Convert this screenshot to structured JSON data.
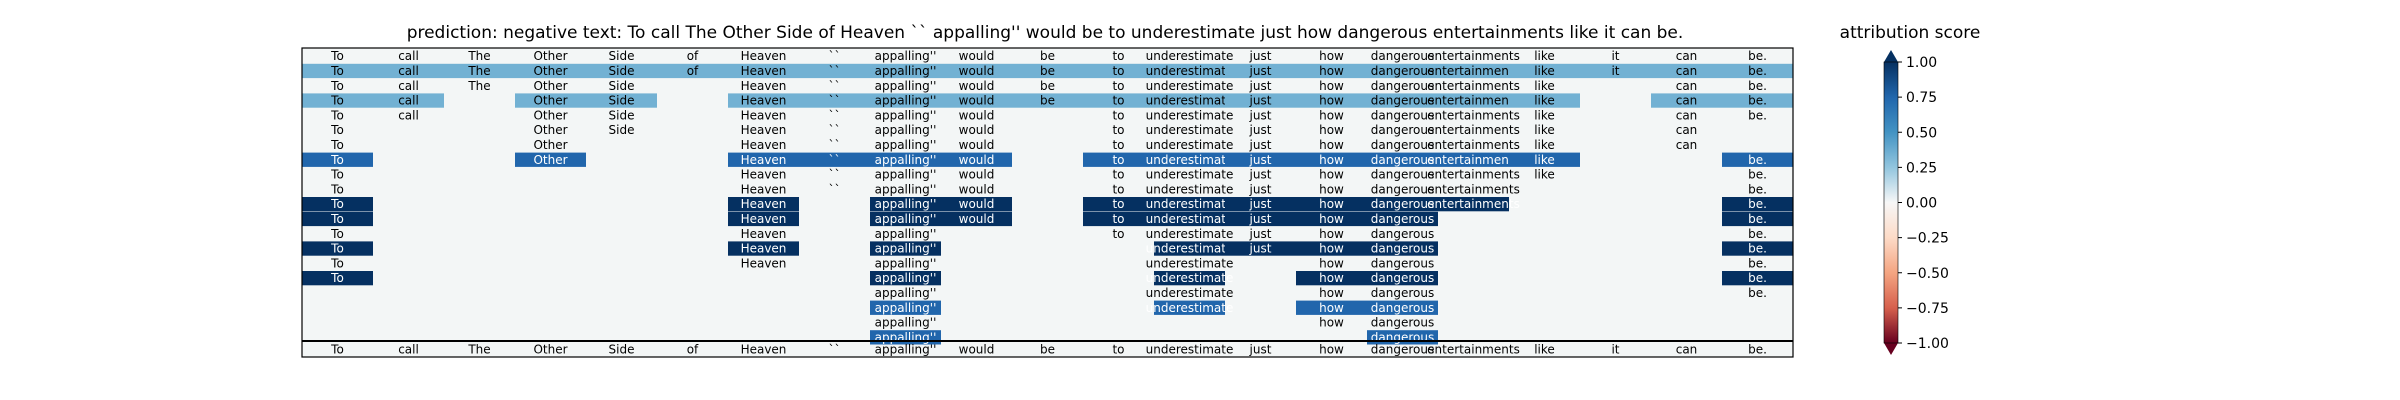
{
  "chart_data": {
    "type": "heatmap",
    "title_left": "prediction:  negative     text:  To call The Other Side of Heaven `` appalling'' would be to underestimate just how dangerous entertainments like it can be.",
    "title_right": "attribution score",
    "tokens": [
      "To",
      "call",
      "The",
      "Other",
      "Side",
      "of",
      "Heaven",
      "``",
      "appalling''",
      "would",
      "be",
      "to",
      "underestimate",
      "just",
      "how",
      "dangerous",
      "entertainments",
      "like",
      "it",
      "can",
      "be."
    ],
    "rows": [
      {
        "present": [
          0,
          1,
          2,
          3,
          4,
          5,
          6,
          7,
          8,
          9,
          10,
          11,
          12,
          13,
          14,
          15,
          16,
          17,
          18,
          19,
          20
        ],
        "scores": [
          0.0,
          0.0,
          0.0,
          0.0,
          0.0,
          0.0,
          0.0,
          0.0,
          0.0,
          0.0,
          0.0,
          0.0,
          0.0,
          0.0,
          0.0,
          0.0,
          0.0,
          0.0,
          0.0,
          0.0,
          0.0
        ]
      },
      {
        "present": [
          0,
          1,
          2,
          3,
          4,
          5,
          6,
          7,
          8,
          9,
          10,
          11,
          12,
          13,
          14,
          15,
          16,
          17,
          18,
          19,
          20
        ],
        "scores": [
          0.35,
          0.35,
          0.35,
          0.35,
          0.35,
          0.35,
          0.35,
          0.35,
          0.35,
          0.35,
          0.35,
          0.35,
          0.35,
          0.35,
          0.35,
          0.35,
          0.35,
          0.35,
          0.35,
          0.35,
          0.35
        ]
      },
      {
        "present": [
          0,
          1,
          2,
          3,
          4,
          6,
          7,
          8,
          9,
          10,
          11,
          12,
          13,
          14,
          15,
          16,
          17,
          19,
          20
        ],
        "scores": [
          0.0,
          0.0,
          0.0,
          0.0,
          0.0,
          0.0,
          0.0,
          0.0,
          0.0,
          0.0,
          0.0,
          0.0,
          0.0,
          0.0,
          0.0,
          0.0,
          0.0,
          0.0,
          0.0
        ]
      },
      {
        "present": [
          0,
          1,
          3,
          4,
          6,
          7,
          8,
          9,
          10,
          11,
          12,
          13,
          14,
          15,
          16,
          17,
          19,
          20
        ],
        "scores": [
          0.35,
          0.35,
          0.35,
          0.35,
          0.35,
          0.35,
          0.35,
          0.35,
          0.35,
          0.35,
          0.35,
          0.35,
          0.35,
          0.35,
          0.35,
          0.35,
          0.35,
          0.35
        ]
      },
      {
        "present": [
          0,
          1,
          3,
          4,
          6,
          7,
          8,
          9,
          11,
          12,
          13,
          14,
          15,
          16,
          17,
          19,
          20
        ],
        "scores": [
          0.0,
          0.0,
          0.0,
          0.0,
          0.0,
          0.0,
          0.0,
          0.0,
          0.0,
          0.0,
          0.0,
          0.0,
          0.0,
          0.0,
          0.0,
          0.0,
          0.0
        ]
      },
      {
        "present": [
          0,
          3,
          4,
          6,
          7,
          8,
          9,
          11,
          12,
          13,
          14,
          15,
          16,
          17,
          19
        ],
        "scores": [
          0.0,
          0.0,
          0.0,
          0.0,
          0.0,
          0.0,
          0.0,
          0.0,
          0.0,
          0.0,
          0.0,
          0.0,
          0.0,
          0.0,
          0.0
        ]
      },
      {
        "present": [
          0,
          3,
          6,
          7,
          8,
          9,
          11,
          12,
          13,
          14,
          15,
          16,
          17,
          19
        ],
        "scores": [
          0.0,
          0.0,
          0.0,
          0.0,
          0.0,
          0.0,
          0.0,
          0.0,
          0.0,
          0.0,
          0.0,
          0.0,
          0.0,
          0.0
        ]
      },
      {
        "present": [
          0,
          3,
          6,
          7,
          8,
          9,
          11,
          12,
          13,
          14,
          15,
          16,
          17,
          20
        ],
        "scores": [
          0.75,
          0.75,
          0.75,
          0.75,
          0.75,
          0.75,
          0.75,
          0.75,
          0.75,
          0.75,
          0.75,
          0.75,
          0.75,
          0.75
        ]
      },
      {
        "present": [
          0,
          6,
          7,
          8,
          9,
          11,
          12,
          13,
          14,
          15,
          16,
          17,
          20
        ],
        "scores": [
          0.0,
          0.0,
          0.0,
          0.0,
          0.0,
          0.0,
          0.0,
          0.0,
          0.0,
          0.0,
          0.0,
          0.0,
          0.0
        ]
      },
      {
        "present": [
          0,
          6,
          7,
          8,
          9,
          11,
          12,
          13,
          14,
          15,
          16,
          20
        ],
        "scores": [
          0.0,
          0.0,
          0.0,
          0.0,
          0.0,
          0.0,
          0.0,
          0.0,
          0.0,
          0.0,
          0.0,
          0.0
        ]
      },
      {
        "present": [
          0,
          6,
          8,
          9,
          11,
          12,
          13,
          14,
          15,
          16,
          20
        ],
        "scores": [
          1.0,
          1.0,
          1.0,
          1.0,
          1.0,
          1.0,
          1.0,
          1.0,
          1.0,
          1.0,
          1.0
        ]
      },
      {
        "present": [
          0,
          6,
          8,
          9,
          11,
          12,
          13,
          14,
          15,
          20
        ],
        "scores": [
          1.0,
          1.0,
          1.0,
          1.0,
          1.0,
          1.0,
          1.0,
          1.0,
          1.0,
          1.0
        ]
      },
      {
        "present": [
          0,
          6,
          8,
          11,
          12,
          13,
          14,
          15,
          20
        ],
        "scores": [
          0.0,
          0.0,
          0.0,
          0.0,
          0.0,
          0.0,
          0.0,
          0.0,
          0.0
        ]
      },
      {
        "present": [
          0,
          6,
          8,
          12,
          13,
          14,
          15,
          20
        ],
        "scores": [
          1.0,
          1.0,
          1.0,
          1.0,
          1.0,
          1.0,
          1.0,
          1.0
        ]
      },
      {
        "present": [
          0,
          6,
          8,
          12,
          14,
          15,
          20
        ],
        "scores": [
          0.0,
          0.0,
          0.0,
          0.0,
          0.0,
          0.0,
          0.0
        ]
      },
      {
        "present": [
          0,
          8,
          12,
          14,
          15,
          20
        ],
        "scores": [
          1.0,
          1.0,
          1.0,
          1.0,
          1.0,
          1.0
        ]
      },
      {
        "present": [
          8,
          12,
          14,
          15,
          20
        ],
        "scores": [
          0.0,
          0.0,
          0.0,
          0.0,
          0.0
        ]
      },
      {
        "present": [
          8,
          12,
          14,
          15
        ],
        "scores": [
          0.75,
          0.75,
          0.75,
          0.75
        ]
      },
      {
        "present": [
          8,
          14,
          15
        ],
        "scores": [
          0.0,
          0.0,
          0.0
        ]
      },
      {
        "present": [
          8,
          15
        ],
        "scores": [
          0.75,
          0.75
        ]
      }
    ],
    "colorbar": {
      "label": "attribution score",
      "range": [
        -1.0,
        1.0
      ],
      "ticks": [
        "1.00",
        "0.75",
        "0.50",
        "0.25",
        "0.00",
        "−0.25",
        "−0.50",
        "−0.75",
        "−1.00"
      ]
    }
  }
}
